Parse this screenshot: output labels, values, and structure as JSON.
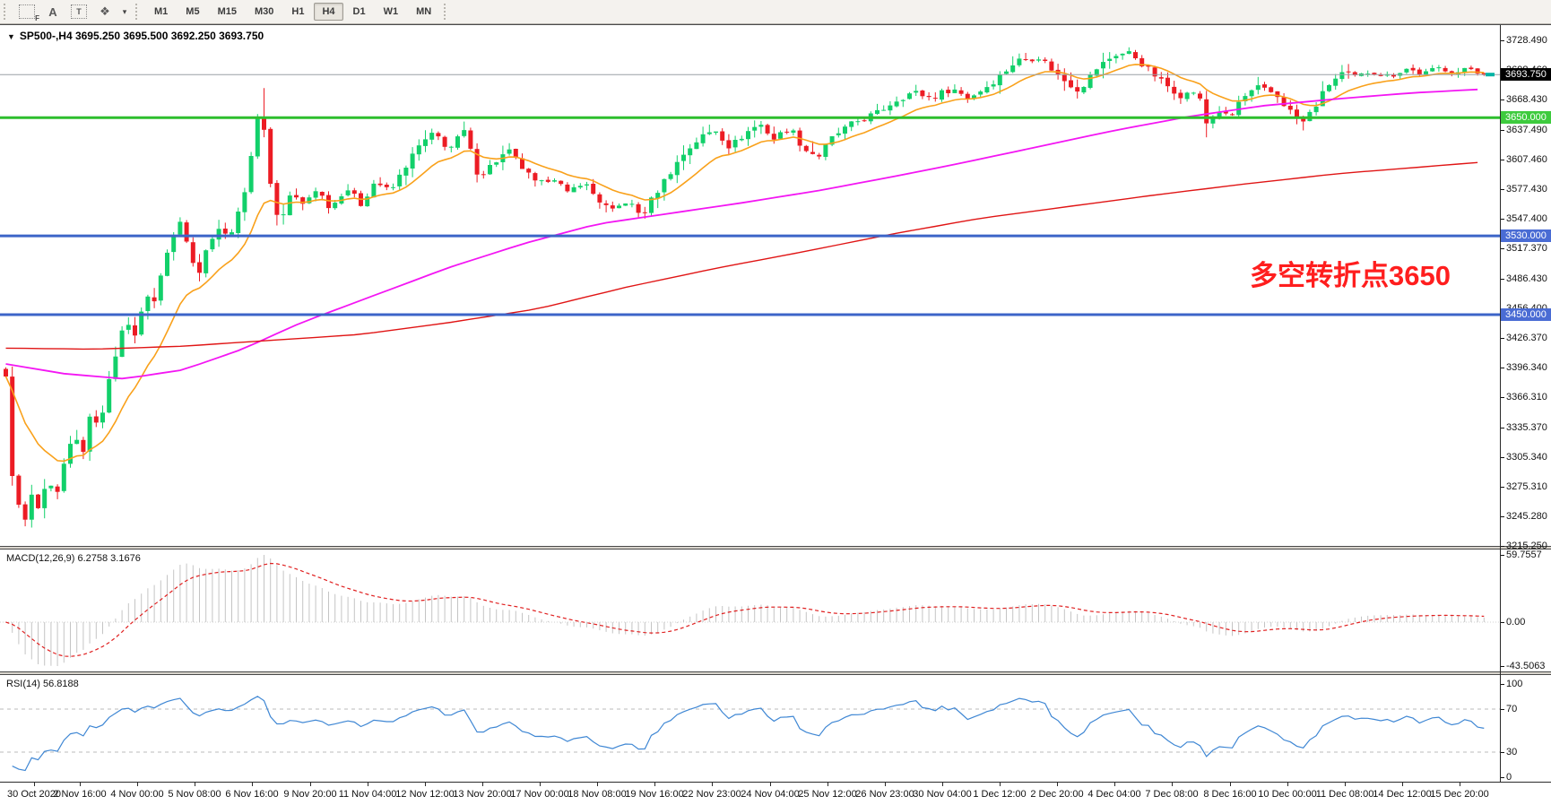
{
  "toolbar": {
    "icons": [
      {
        "name": "dotted-frame-f-icon",
        "glyph": "",
        "corner": "F"
      },
      {
        "name": "text-label-tool-icon",
        "glyph": "A"
      },
      {
        "name": "text-box-tool-icon",
        "glyph": "T"
      },
      {
        "name": "shapes-tool-icon",
        "glyph": "❖"
      },
      {
        "name": "shapes-dropdown-icon",
        "glyph": "▾"
      }
    ],
    "timeframes": [
      "M1",
      "M5",
      "M15",
      "M30",
      "H1",
      "H4",
      "D1",
      "W1",
      "MN"
    ],
    "active_timeframe": "H4"
  },
  "chart": {
    "dropdown_glyph": "▼",
    "title_text": "SP500-,H4  3695.250 3695.500 3692.250 3693.750"
  },
  "macd_panel": {
    "label_text": "MACD(12,26,9) 6.2758 3.1676",
    "axis_labels": [
      "59.7557",
      "0.00",
      "-43.5063"
    ]
  },
  "rsi_panel": {
    "label_text": "RSI(14) 56.8188",
    "axis_labels": [
      "100",
      "70",
      "30",
      "0"
    ]
  },
  "chart_data": {
    "type": "candlestick",
    "symbol": "SP500-",
    "period": "H4",
    "title": "SP500-,H4",
    "ohlc_current": {
      "open": 3695.25,
      "high": 3695.5,
      "low": 3692.25,
      "close": 3693.75
    },
    "bars": 230,
    "ylim": [
      3215.25,
      3728.49
    ],
    "price_axis_ticks": [
      {
        "text": "3728.490",
        "price": 3728.49
      },
      {
        "text": "3698.460",
        "price": 3698.46
      },
      {
        "text": "3668.430",
        "price": 3668.43
      },
      {
        "text": "3637.490",
        "price": 3637.49
      },
      {
        "text": "3607.460",
        "price": 3607.46
      },
      {
        "text": "3577.430",
        "price": 3577.43
      },
      {
        "text": "3547.400",
        "price": 3547.4
      },
      {
        "text": "3517.370",
        "price": 3517.37
      },
      {
        "text": "3486.430",
        "price": 3486.43
      },
      {
        "text": "3456.400",
        "price": 3456.4
      },
      {
        "text": "3426.370",
        "price": 3426.37
      },
      {
        "text": "3396.340",
        "price": 3396.34
      },
      {
        "text": "3366.310",
        "price": 3366.31
      },
      {
        "text": "3335.370",
        "price": 3335.37
      },
      {
        "text": "3305.340",
        "price": 3305.34
      },
      {
        "text": "3275.310",
        "price": 3275.31
      },
      {
        "text": "3245.280",
        "price": 3245.28
      },
      {
        "text": "3215.250",
        "price": 3215.25
      }
    ],
    "current_price_tag": {
      "text": "3693.750",
      "price": 3693.75,
      "bg": "#000000",
      "line_color": "#9aa0a6",
      "marker_color": "#00b3a4"
    },
    "horizontal_lines": [
      {
        "text": "3650.000",
        "price": 3650,
        "color": "#2dbe2d",
        "tag_bg": "#3ecb3e"
      },
      {
        "text": "3530.000",
        "price": 3530,
        "color": "#3c64c8",
        "tag_bg": "#4a6cd4"
      },
      {
        "text": "3450.000",
        "price": 3450,
        "color": "#3c64c8",
        "tag_bg": "#4a6cd4"
      }
    ],
    "annotation": {
      "text": "多空转折点3650",
      "color": "#ff1e1e",
      "x": 1618,
      "y": 290,
      "size": 31,
      "anchor": "end"
    },
    "candle_colors": {
      "up": "#12d06a",
      "down": "#ec1c24"
    },
    "close_path_anchors": [
      [
        0.0,
        3385
      ],
      [
        0.003,
        3330
      ],
      [
        0.006,
        3240
      ],
      [
        0.01,
        3262
      ],
      [
        0.014,
        3235
      ],
      [
        0.018,
        3270
      ],
      [
        0.023,
        3248
      ],
      [
        0.028,
        3282
      ],
      [
        0.034,
        3262
      ],
      [
        0.04,
        3300
      ],
      [
        0.046,
        3328
      ],
      [
        0.052,
        3310
      ],
      [
        0.058,
        3352
      ],
      [
        0.064,
        3335
      ],
      [
        0.07,
        3388
      ],
      [
        0.076,
        3420
      ],
      [
        0.082,
        3445
      ],
      [
        0.088,
        3425
      ],
      [
        0.094,
        3475
      ],
      [
        0.1,
        3458
      ],
      [
        0.106,
        3500
      ],
      [
        0.113,
        3528
      ],
      [
        0.119,
        3548
      ],
      [
        0.125,
        3510
      ],
      [
        0.131,
        3494
      ],
      [
        0.137,
        3522
      ],
      [
        0.143,
        3540
      ],
      [
        0.15,
        3528
      ],
      [
        0.157,
        3550
      ],
      [
        0.163,
        3586
      ],
      [
        0.169,
        3640
      ],
      [
        0.173,
        3662
      ],
      [
        0.177,
        3610
      ],
      [
        0.181,
        3556
      ],
      [
        0.187,
        3548
      ],
      [
        0.193,
        3575
      ],
      [
        0.2,
        3560
      ],
      [
        0.21,
        3578
      ],
      [
        0.22,
        3558
      ],
      [
        0.23,
        3580
      ],
      [
        0.24,
        3562
      ],
      [
        0.25,
        3586
      ],
      [
        0.26,
        3574
      ],
      [
        0.27,
        3600
      ],
      [
        0.28,
        3622
      ],
      [
        0.29,
        3634
      ],
      [
        0.3,
        3618
      ],
      [
        0.31,
        3636
      ],
      [
        0.32,
        3590
      ],
      [
        0.33,
        3604
      ],
      [
        0.34,
        3616
      ],
      [
        0.35,
        3598
      ],
      [
        0.36,
        3580
      ],
      [
        0.37,
        3592
      ],
      [
        0.38,
        3572
      ],
      [
        0.39,
        3586
      ],
      [
        0.4,
        3568
      ],
      [
        0.41,
        3554
      ],
      [
        0.42,
        3566
      ],
      [
        0.43,
        3550
      ],
      [
        0.44,
        3574
      ],
      [
        0.45,
        3596
      ],
      [
        0.46,
        3616
      ],
      [
        0.47,
        3630
      ],
      [
        0.48,
        3638
      ],
      [
        0.49,
        3620
      ],
      [
        0.5,
        3634
      ],
      [
        0.51,
        3644
      ],
      [
        0.52,
        3628
      ],
      [
        0.53,
        3641
      ],
      [
        0.54,
        3618
      ],
      [
        0.55,
        3611
      ],
      [
        0.56,
        3631
      ],
      [
        0.57,
        3641
      ],
      [
        0.578,
        3648
      ],
      [
        0.59,
        3655
      ],
      [
        0.602,
        3668
      ],
      [
        0.614,
        3676
      ],
      [
        0.626,
        3670
      ],
      [
        0.64,
        3680
      ],
      [
        0.651,
        3670
      ],
      [
        0.662,
        3680
      ],
      [
        0.669,
        3688
      ],
      [
        0.684,
        3708
      ],
      [
        0.699,
        3712
      ],
      [
        0.714,
        3690
      ],
      [
        0.726,
        3678
      ],
      [
        0.738,
        3700
      ],
      [
        0.75,
        3714
      ],
      [
        0.761,
        3716
      ],
      [
        0.772,
        3700
      ],
      [
        0.784,
        3684
      ],
      [
        0.796,
        3672
      ],
      [
        0.806,
        3678
      ],
      [
        0.812,
        3644
      ],
      [
        0.82,
        3658
      ],
      [
        0.828,
        3648
      ],
      [
        0.835,
        3668
      ],
      [
        0.847,
        3680
      ],
      [
        0.859,
        3674
      ],
      [
        0.868,
        3658
      ],
      [
        0.877,
        3644
      ],
      [
        0.886,
        3662
      ],
      [
        0.895,
        3684
      ],
      [
        0.905,
        3696
      ],
      [
        0.914,
        3690
      ],
      [
        0.923,
        3698
      ],
      [
        0.935,
        3692
      ],
      [
        0.947,
        3700
      ],
      [
        0.959,
        3694
      ],
      [
        0.971,
        3701
      ],
      [
        0.983,
        3696
      ],
      [
        0.992,
        3700
      ],
      [
        1.0,
        3693.75
      ]
    ],
    "wick_overrides": [
      {
        "f": 0.173,
        "high": 3680
      },
      {
        "f": 0.812,
        "low": 3630
      },
      {
        "f": 0.877,
        "low": 3637
      }
    ],
    "moving_averages": [
      {
        "name": "fast-ma",
        "color": "#f9a11b",
        "width": 1.6,
        "type": "ema",
        "period": 13
      },
      {
        "name": "medium-ma",
        "color": "#f316f3",
        "width": 1.8,
        "type": "anchors",
        "anchors": [
          [
            0,
            3400
          ],
          [
            0.04,
            3390
          ],
          [
            0.08,
            3385
          ],
          [
            0.12,
            3394
          ],
          [
            0.16,
            3415
          ],
          [
            0.2,
            3442
          ],
          [
            0.25,
            3470
          ],
          [
            0.3,
            3498
          ],
          [
            0.35,
            3522
          ],
          [
            0.4,
            3542
          ],
          [
            0.45,
            3553
          ],
          [
            0.5,
            3564
          ],
          [
            0.55,
            3576
          ],
          [
            0.6,
            3590
          ],
          [
            0.65,
            3605
          ],
          [
            0.7,
            3621
          ],
          [
            0.75,
            3637
          ],
          [
            0.8,
            3651
          ],
          [
            0.85,
            3662
          ],
          [
            0.9,
            3669
          ],
          [
            0.95,
            3675
          ],
          [
            1.0,
            3679
          ]
        ]
      },
      {
        "name": "slow-ma",
        "color": "#e01515",
        "width": 1.4,
        "type": "anchors",
        "anchors": [
          [
            0,
            3416
          ],
          [
            0.06,
            3415
          ],
          [
            0.12,
            3418
          ],
          [
            0.18,
            3424
          ],
          [
            0.24,
            3430
          ],
          [
            0.3,
            3442
          ],
          [
            0.36,
            3456
          ],
          [
            0.42,
            3478
          ],
          [
            0.48,
            3497
          ],
          [
            0.54,
            3514
          ],
          [
            0.6,
            3532
          ],
          [
            0.66,
            3548
          ],
          [
            0.72,
            3560
          ],
          [
            0.78,
            3572
          ],
          [
            0.84,
            3583
          ],
          [
            0.9,
            3593
          ],
          [
            0.95,
            3599
          ],
          [
            1.0,
            3605
          ]
        ]
      }
    ],
    "macd": {
      "params": [
        12,
        26,
        9
      ],
      "current_values": [
        6.2758,
        3.1676
      ],
      "scale_max": 59.7557,
      "scale_min": -43.5063,
      "histogram_color": "#c4c4c4",
      "signal_color": "#e02020"
    },
    "rsi": {
      "period": 14,
      "current_value": 56.8188,
      "scale": [
        0,
        100
      ],
      "levels": [
        70,
        30
      ],
      "line_color": "#3f87d4",
      "level_color": "#bbbbbb"
    },
    "time_axis_ticks": [
      "30 Oct 2020",
      "2 Nov 16:00",
      "4 Nov 00:00",
      "5 Nov 08:00",
      "6 Nov 16:00",
      "9 Nov 20:00",
      "11 Nov 04:00",
      "12 Nov 12:00",
      "13 Nov 20:00",
      "17 Nov 00:00",
      "18 Nov 08:00",
      "19 Nov 16:00",
      "22 Nov 23:00",
      "24 Nov 04:00",
      "25 Nov 12:00",
      "26 Nov 23:00",
      "30 Nov 04:00",
      "1 Dec 12:00",
      "2 Dec 20:00",
      "4 Dec 04:00",
      "7 Dec 08:00",
      "8 Dec 16:00",
      "10 Dec 00:00",
      "11 Dec 08:00",
      "14 Dec 12:00",
      "15 Dec 20:00"
    ]
  }
}
